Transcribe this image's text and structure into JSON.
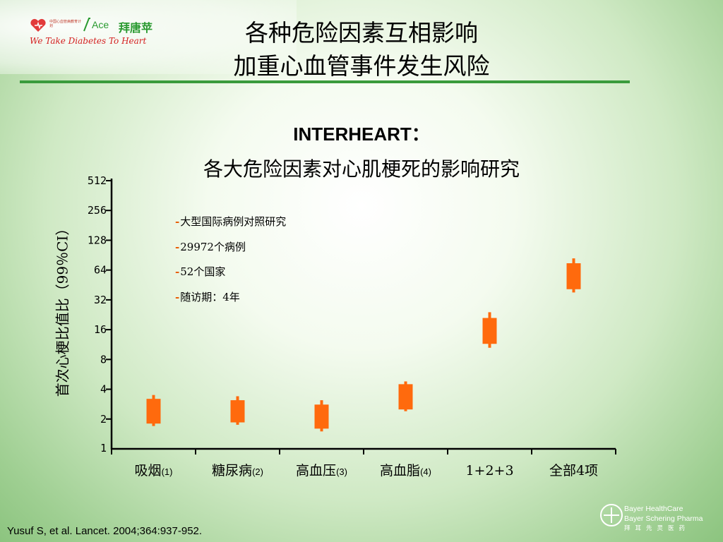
{
  "header": {
    "logo": {
      "org_text": "中国心血管病教育计划",
      "ace_text": "Ace",
      "brand_text": "拜唐苹",
      "tagline": "We Take Diabetes To Heart"
    },
    "title_line1": "各种危险因素互相影响",
    "title_line2": "加重心血管事件发生风险"
  },
  "subtitle_line1": "INTERHEART：",
  "subtitle_line2": "各大危险因素对心肌梗死的影响研究",
  "study_notes": [
    "大型国际病例对照研究",
    "29972个病例",
    "52个国家",
    "随访期：4年"
  ],
  "chart_data": {
    "type": "box",
    "ylabel": "首次心梗比值比（99％CI）",
    "yscale": "log2",
    "ylim": [
      1,
      512
    ],
    "yticks": [
      1,
      2,
      4,
      8,
      16,
      32,
      64,
      128,
      256,
      512
    ],
    "categories": [
      "吸烟(1)",
      "糖尿病(2)",
      "高血压(3)",
      "高血脂(4)",
      "1+2+3",
      "全部4项"
    ],
    "category_parts": [
      [
        "吸烟",
        "(1)"
      ],
      [
        "糖尿病",
        "(2)"
      ],
      [
        "高血压",
        "(3)"
      ],
      [
        "高血脂",
        "(4)"
      ],
      [
        "1+2+3",
        ""
      ],
      [
        "全部4项",
        ""
      ]
    ],
    "whisker_low": [
      1.7,
      1.75,
      1.5,
      2.4,
      10.5,
      38
    ],
    "box_low": [
      1.8,
      1.85,
      1.6,
      2.5,
      11.5,
      41
    ],
    "box_high": [
      3.2,
      3.1,
      2.8,
      4.5,
      21,
      75
    ],
    "whisker_high": [
      3.5,
      3.4,
      3.1,
      4.8,
      24,
      84
    ],
    "grid": false,
    "color": "#ff6a0d"
  },
  "footer": {
    "citation": "Yusuf S, et al. Lancet. 2004;364:937-952.",
    "bayer_line1": "Bayer HealthCare",
    "bayer_line2": "Bayer Schering Pharma",
    "bayer_line3": "拜耳先灵医药"
  }
}
